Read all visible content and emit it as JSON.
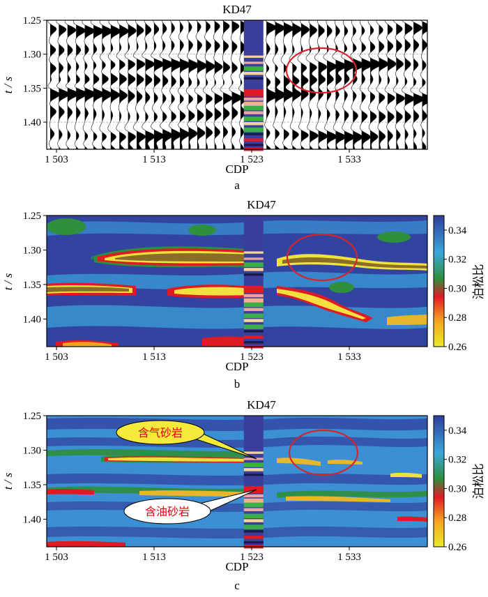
{
  "figure_caption_letters": [
    "a",
    "b",
    "c"
  ],
  "colors": {
    "seismic_fill": "#000000",
    "highlight_ellipse": "#d9232a",
    "well_base": "#3a3f9c",
    "callout_gas_fill": "#f5ea3c",
    "callout_oil_fill": "#ffffff",
    "callout_text": "#e0000a"
  },
  "colorbar": {
    "label": "泊松比",
    "ticks": [
      "0.34",
      "0.32",
      "0.30",
      "0.28",
      "0.26"
    ],
    "tick_values": [
      0.34,
      0.32,
      0.3,
      0.28,
      0.26
    ],
    "range": [
      0.26,
      0.35
    ],
    "stops": [
      "#eaeb28",
      "#f6a21f",
      "#e01a22",
      "#2e8f3c",
      "#3aa7dc",
      "#2f3c99"
    ]
  },
  "callouts": {
    "gas": "含气砂岩",
    "oil": "含油砂岩"
  },
  "chart_data": [
    {
      "panel": "a",
      "type": "seismic-wiggle",
      "title": "KD47",
      "xlabel": "CDP",
      "ylabel": "t / s",
      "xticks": [
        "1 503",
        "1 513",
        "1 523",
        "1 533"
      ],
      "xtick_values": [
        1503,
        1513,
        1523,
        1533
      ],
      "yticks": [
        "1.25",
        "1.30",
        "1.35",
        "1.40"
      ],
      "ytick_values": [
        1.25,
        1.3,
        1.35,
        1.4
      ],
      "xlim": [
        1502,
        1541
      ],
      "ylim": [
        1.44,
        1.25
      ],
      "grid": true,
      "well": {
        "name": "KD47",
        "cdp": 1523.2
      },
      "highlight": {
        "cdp": 1530.5,
        "t": 1.322
      }
    },
    {
      "panel": "b",
      "type": "heatmap",
      "title": "KD47",
      "xlabel": "CDP",
      "ylabel": "t / s",
      "xticks": [
        "1 503",
        "1 513",
        "1 523",
        "1 533"
      ],
      "xtick_values": [
        1503,
        1513,
        1523,
        1533
      ],
      "yticks": [
        "1.25",
        "1.30",
        "1.35",
        "1.40"
      ],
      "ytick_values": [
        1.25,
        1.3,
        1.35,
        1.4
      ],
      "xlim": [
        1502,
        1541
      ],
      "ylim": [
        1.44,
        1.25
      ],
      "value_label": "泊松比",
      "well": {
        "name": "KD47",
        "cdp": 1523.2
      },
      "highlight": {
        "cdp": 1530.0,
        "t": 1.31
      }
    },
    {
      "panel": "c",
      "type": "heatmap",
      "title": "KD47",
      "xlabel": "CDP",
      "ylabel": "t / s",
      "xticks": [
        "1 503",
        "1 513",
        "1 523",
        "1 533"
      ],
      "xtick_values": [
        1503,
        1513,
        1523,
        1533
      ],
      "yticks": [
        "1.25",
        "1.30",
        "1.35",
        "1.40"
      ],
      "ytick_values": [
        1.25,
        1.3,
        1.35,
        1.4
      ],
      "xlim": [
        1502,
        1541
      ],
      "ylim": [
        1.44,
        1.25
      ],
      "value_label": "泊松比",
      "well": {
        "name": "KD47",
        "cdp": 1523.2
      },
      "highlight": {
        "cdp": 1530.0,
        "t": 1.303
      }
    }
  ]
}
